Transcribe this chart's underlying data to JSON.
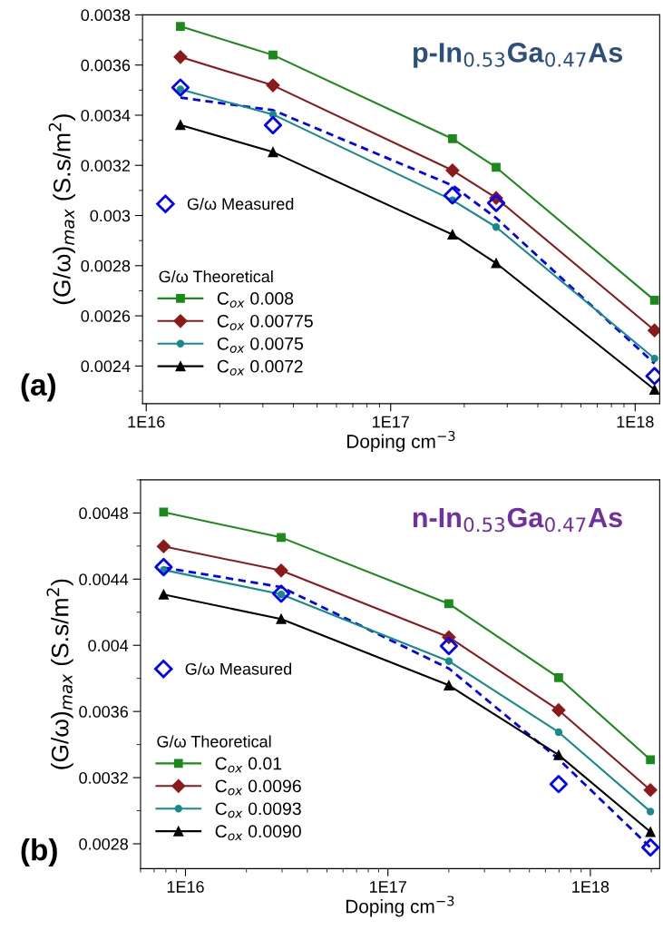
{
  "chart_data": [
    {
      "type": "line",
      "title": "p-In$_{0.53}$Ga$_{0.47}$As",
      "xlabel": "Doping cm$^{−3}$",
      "ylabel": "(G/ω)$_{max}$ (S.s/m$^{2}$)",
      "annotations": [
        "(a)"
      ],
      "legend_title": "G/ω Theoretical",
      "legend": "left",
      "log": "x",
      "grid": false,
      "x": [
        1.38e+16,
        3.3e+16,
        1.79e+17,
        2.7e+17,
        1.2e+18
      ],
      "xlim": [
        9660000000000000.0,
        1.26e+18
      ],
      "xticks": [
        {
          "value": 1e+16,
          "label": "1E16"
        },
        {
          "value": 1e+17,
          "label": "1E17"
        },
        {
          "value": 1e+18,
          "label": "1E18"
        }
      ],
      "ylim": [
        0.00225,
        0.0038
      ],
      "yticks": [
        0.0024,
        0.0026,
        0.0028,
        0.003,
        0.0032,
        0.0034,
        0.0036,
        0.0038
      ],
      "series": [
        {
          "name": "G/ω Measured",
          "type": "scatter",
          "marker": "diamond",
          "color": "#0000ff",
          "values": [
            0.00351,
            0.00336,
            0.00308,
            0.00305,
            0.00236
          ]
        },
        {
          "type": "line",
          "line_style": "dashed",
          "marker": "none",
          "color": "#0000ff",
          "values": [
            0.00347,
            0.00342,
            0.00312,
            0.00299,
            0.00241
          ]
        },
        {
          "name": "C$_{ox}$ 0.008",
          "type": "line",
          "marker": "square",
          "color": "#1a8a1a",
          "values": [
            0.003754,
            0.00364,
            0.003306,
            0.003192,
            0.002662
          ]
        },
        {
          "name": "C$_{ox}$ 0.00775",
          "type": "line",
          "marker": "diamond",
          "color": "#8b1a1a",
          "values": [
            0.003632,
            0.003519,
            0.00318,
            0.00307,
            0.002542
          ]
        },
        {
          "name": "C$_{ox}$ 0.0075",
          "type": "line",
          "marker": "circle",
          "color": "#178a8a",
          "values": [
            0.003503,
            0.003403,
            0.003061,
            0.002954,
            0.00243
          ]
        },
        {
          "name": "C$_{ox}$ 0.0072",
          "type": "line",
          "marker": "triangle",
          "color": "#000000",
          "values": [
            0.003361,
            0.003253,
            0.002924,
            0.00281,
            0.002306
          ]
        }
      ]
    },
    {
      "type": "line",
      "title": "n-In$_{0.53}$Ga$_{0.47}$As",
      "xlabel": "Doping cm$^{−3}$",
      "ylabel": "(G/ω)$_{max}$ (S.s/m$^{2}$)",
      "annotations": [
        "(b)"
      ],
      "legend_title": "G/ω Theoretical",
      "legend": "left",
      "log": "x",
      "grid": false,
      "x": [
        7800000000000000.0,
        2.97e+16,
        2e+17,
        6.97e+17,
        1.98e+18
      ],
      "xlim": [
        6000000000000000.0,
        2.2e+18
      ],
      "xticks": [
        {
          "value": 1e+16,
          "label": "1E16"
        },
        {
          "value": 1e+17,
          "label": "1E17"
        },
        {
          "value": 1e+18,
          "label": "1E18"
        }
      ],
      "ylim": [
        0.00265,
        0.005
      ],
      "yticks": [
        0.0028,
        0.0032,
        0.0036,
        0.004,
        0.0044,
        0.0048
      ],
      "series": [
        {
          "name": "G/ω Measured",
          "type": "scatter",
          "marker": "diamond",
          "color": "#0000ff",
          "values": [
            0.004473,
            0.004312,
            0.003996,
            0.003161,
            0.002778
          ]
        },
        {
          "type": "line",
          "line_style": "dashed",
          "marker": "none",
          "color": "#0000ff",
          "values": [
            0.00447,
            0.004352,
            0.00386,
            0.003312,
            0.002778
          ]
        },
        {
          "name": "C$_{ox}$ 0.01",
          "type": "line",
          "marker": "square",
          "color": "#1a8a1a",
          "values": [
            0.004805,
            0.004652,
            0.004251,
            0.003804,
            0.003308
          ]
        },
        {
          "name": "C$_{ox}$ 0.0096",
          "type": "line",
          "marker": "diamond",
          "color": "#8b1a1a",
          "values": [
            0.004598,
            0.004452,
            0.004049,
            0.003608,
            0.003125
          ]
        },
        {
          "name": "C$_{ox}$ 0.0093",
          "type": "line",
          "marker": "circle",
          "color": "#178a8a",
          "values": [
            0.004456,
            0.004308,
            0.003904,
            0.003475,
            0.002995
          ]
        },
        {
          "name": "C$_{ox}$ 0.0090",
          "type": "line",
          "marker": "triangle",
          "color": "#000000",
          "values": [
            0.004307,
            0.004159,
            0.003758,
            0.003337,
            0.002872
          ]
        }
      ]
    }
  ]
}
